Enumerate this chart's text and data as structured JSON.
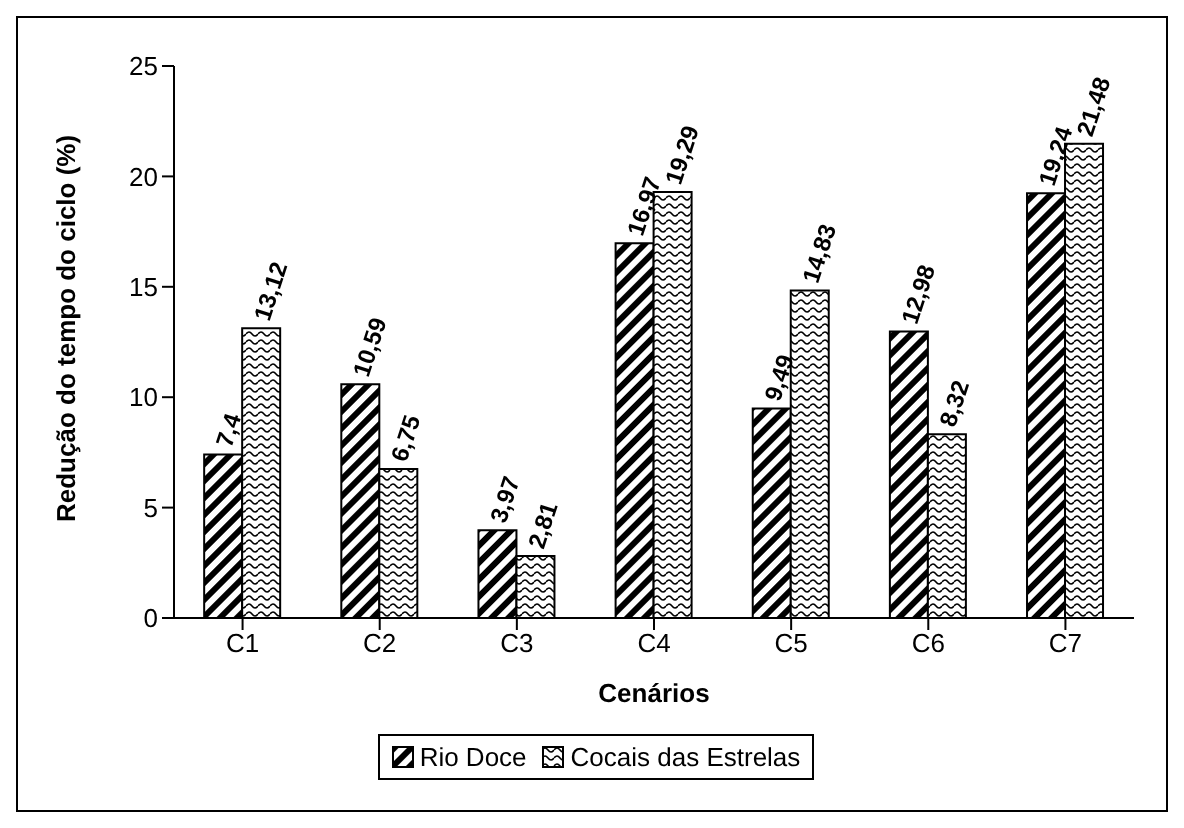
{
  "chart_data": {
    "type": "bar",
    "xlabel": "Cenários",
    "ylabel": "Redução do tempo do ciclo (%)",
    "categories": [
      "C1",
      "C2",
      "C3",
      "C4",
      "C5",
      "C6",
      "C7"
    ],
    "series": [
      {
        "name": "Rio Doce",
        "color": "#000000",
        "values": [
          7.4,
          10.59,
          3.97,
          16.97,
          9.49,
          12.98,
          19.24
        ],
        "value_labels": [
          "7,4",
          "10,59",
          "3,97",
          "16,97",
          "9,49",
          "12,98",
          "19,24"
        ]
      },
      {
        "name": "Cocais das Estrelas",
        "color": "#000000",
        "values": [
          13.12,
          6.75,
          2.81,
          19.29,
          14.83,
          8.32,
          21.48
        ],
        "value_labels": [
          "13,12",
          "6,75",
          "2,81",
          "19,29",
          "14,83",
          "8,32",
          "21,48"
        ]
      }
    ],
    "ylim": [
      0,
      25
    ],
    "yticks": [
      0,
      5,
      10,
      15,
      20,
      25
    ],
    "grid": false,
    "legend": "bottom"
  }
}
